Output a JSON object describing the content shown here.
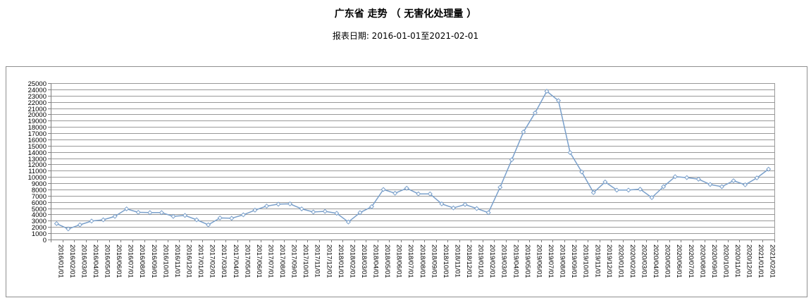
{
  "header": {
    "title": "广东省 走势 （ 无害化处理量 ）",
    "subtitle": "报表日期: 2016-01-01至2021-02-01"
  },
  "colors": {
    "series_line": "#7aa0cb",
    "marker_fill": "#ffffff",
    "gridline": "#999999",
    "axis": "#808080",
    "frame_border": "#909090",
    "text": "#000000",
    "background": "#ffffff"
  },
  "chart_data": {
    "type": "line",
    "title": "广东省 走势 （ 无害化处理量 ）",
    "subtitle": "报表日期: 2016-01-01至2021-02-01",
    "legend": "none",
    "grid": "horizontal",
    "x_label_rotation": 90,
    "ylim": [
      0,
      25000
    ],
    "ytick_step": 1000,
    "yticks": [
      0,
      1000,
      2000,
      3000,
      4000,
      5000,
      6000,
      7000,
      8000,
      9000,
      10000,
      11000,
      12000,
      13000,
      14000,
      15000,
      16000,
      17000,
      18000,
      19000,
      20000,
      21000,
      22000,
      23000,
      24000,
      25000
    ],
    "categories": [
      "2016/01/01",
      "2016/02/01",
      "2016/03/01",
      "2016/04/01",
      "2016/05/01",
      "2016/06/01",
      "2016/07/01",
      "2016/08/01",
      "2016/09/01",
      "2016/10/01",
      "2016/11/01",
      "2016/12/01",
      "2017/01/01",
      "2017/02/01",
      "2017/03/01",
      "2017/04/01",
      "2017/05/01",
      "2017/06/01",
      "2017/07/01",
      "2017/08/01",
      "2017/09/01",
      "2017/10/01",
      "2017/11/01",
      "2017/12/01",
      "2018/01/01",
      "2018/02/01",
      "2018/03/01",
      "2018/04/01",
      "2018/05/01",
      "2018/06/01",
      "2018/07/01",
      "2018/08/01",
      "2018/09/01",
      "2018/10/01",
      "2018/11/01",
      "2018/12/01",
      "2019/01/01",
      "2019/02/01",
      "2019/03/01",
      "2019/04/01",
      "2019/05/01",
      "2019/06/01",
      "2019/07/01",
      "2019/08/01",
      "2019/09/01",
      "2019/10/01",
      "2019/11/01",
      "2019/12/01",
      "2020/01/01",
      "2020/02/01",
      "2020/03/01",
      "2020/04/01",
      "2020/05/01",
      "2020/06/01",
      "2020/07/01",
      "2020/08/01",
      "2020/09/01",
      "2020/10/01",
      "2020/11/01",
      "2020/12/01",
      "2021/01/01",
      "2021/02/01"
    ],
    "series": [
      {
        "name": "无害化处理量",
        "marker": "diamond",
        "values": [
          2550,
          1700,
          2350,
          2950,
          3150,
          3700,
          4900,
          4350,
          4300,
          4300,
          3700,
          3850,
          3150,
          2350,
          3450,
          3400,
          3950,
          4700,
          5350,
          5650,
          5700,
          4900,
          4400,
          4500,
          4200,
          2800,
          4300,
          5250,
          8000,
          7400,
          8200,
          7300,
          7300,
          5700,
          5050,
          5600,
          4950,
          4300,
          8350,
          12750,
          17200,
          20250,
          23700,
          22200,
          13900,
          10800,
          7500,
          9200,
          7900,
          7900,
          8050,
          6700,
          8450,
          10050,
          9900,
          9650,
          8800,
          8450,
          9400,
          8750,
          9850,
          11250
        ]
      }
    ]
  }
}
